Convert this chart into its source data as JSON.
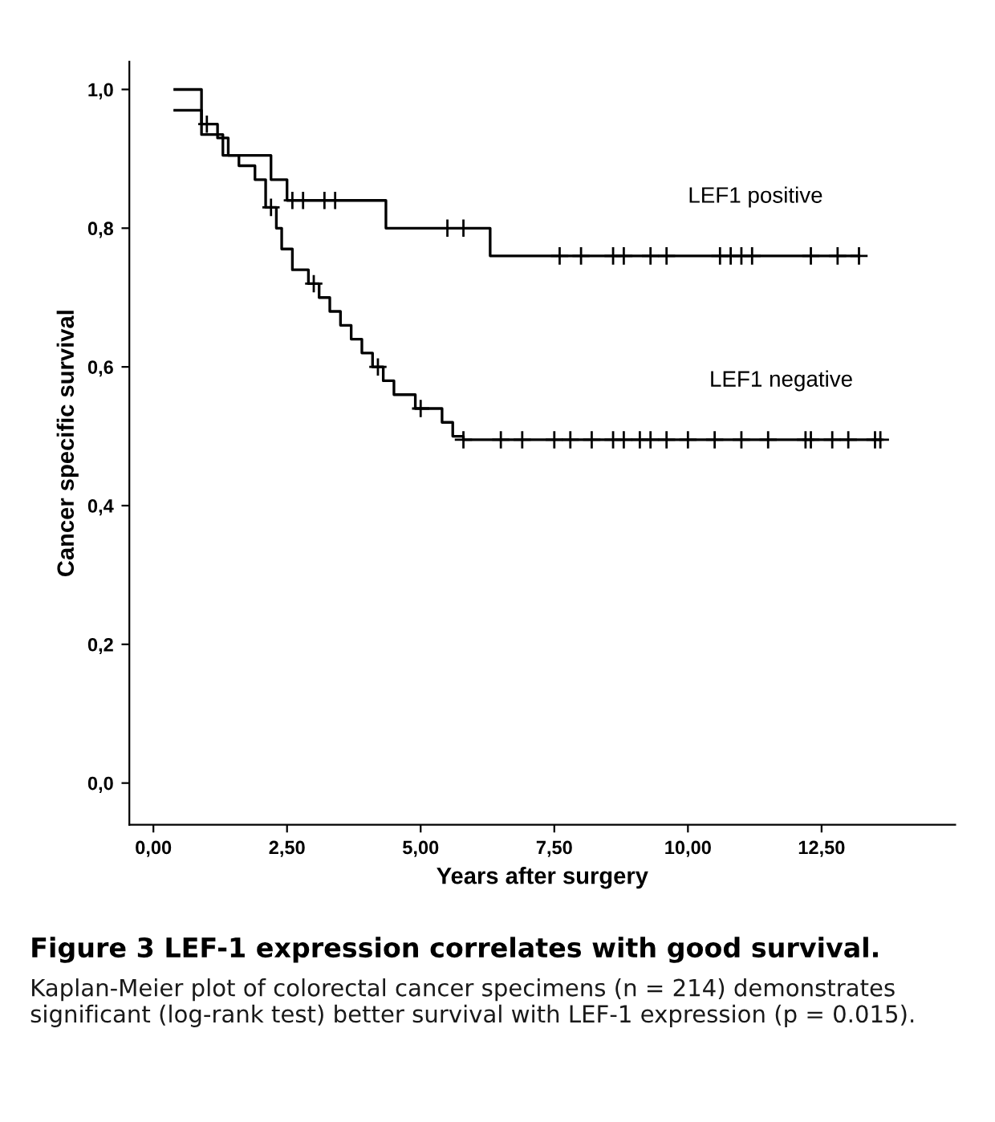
{
  "chart_data": {
    "type": "step",
    "xlabel": "Years after surgery",
    "ylabel": "Cancer specific survival",
    "xlim": [
      -0.45,
      15.0
    ],
    "ylim": [
      -0.06,
      1.04
    ],
    "xticks": [
      {
        "value": 0,
        "label": "0,00"
      },
      {
        "value": 2.5,
        "label": "2,50"
      },
      {
        "value": 5,
        "label": "5,00"
      },
      {
        "value": 7.5,
        "label": "7,50"
      },
      {
        "value": 10,
        "label": "10,00"
      },
      {
        "value": 12.5,
        "label": "12,50"
      }
    ],
    "yticks": [
      {
        "value": 0,
        "label": "0,0"
      },
      {
        "value": 0.2,
        "label": "0,2"
      },
      {
        "value": 0.4,
        "label": "0,4"
      },
      {
        "value": 0.6,
        "label": "0,6"
      },
      {
        "value": 0.8,
        "label": "0,8"
      },
      {
        "value": 1.0,
        "label": "1,0"
      }
    ],
    "grid": false,
    "legend": false,
    "series": [
      {
        "name": "LEF1 positive",
        "color": "#000000",
        "x": [
          0.4,
          0.9,
          1.3,
          2.2,
          2.5,
          4.35,
          6.3,
          13.2
        ],
        "values": [
          1.0,
          0.935,
          0.905,
          0.87,
          0.84,
          0.8,
          0.76,
          0.76
        ]
      },
      {
        "name": "LEF1 negative",
        "color": "#000000",
        "x": [
          0.4,
          0.9,
          1.2,
          1.4,
          1.6,
          1.9,
          2.1,
          2.3,
          2.4,
          2.6,
          2.9,
          3.1,
          3.3,
          3.5,
          3.7,
          3.9,
          4.1,
          4.3,
          4.5,
          4.9,
          5.4,
          5.6,
          5.8,
          13.6
        ],
        "values": [
          0.97,
          0.95,
          0.93,
          0.905,
          0.89,
          0.87,
          0.83,
          0.8,
          0.77,
          0.74,
          0.72,
          0.7,
          0.68,
          0.66,
          0.64,
          0.62,
          0.6,
          0.58,
          0.56,
          0.54,
          0.52,
          0.5,
          0.495,
          0.495
        ]
      },
      {
        "color": "#000000",
        "type": "scatter",
        "marker": "cross",
        "x": [
          2.6,
          2.8,
          3.2,
          3.4,
          5.5,
          5.8,
          7.6,
          8.0,
          8.6,
          8.8,
          9.3,
          9.6,
          10.6,
          10.8,
          11.0,
          11.2,
          12.3,
          12.8,
          13.2
        ],
        "values": [
          0.84,
          0.84,
          0.84,
          0.84,
          0.8,
          0.8,
          0.76,
          0.76,
          0.76,
          0.76,
          0.76,
          0.76,
          0.76,
          0.76,
          0.76,
          0.76,
          0.76,
          0.76,
          0.76
        ]
      },
      {
        "color": "#000000",
        "type": "scatter",
        "marker": "cross",
        "x": [
          1.0,
          2.2,
          3.0,
          4.2,
          5.0,
          5.8,
          6.5,
          6.9,
          7.5,
          7.8,
          8.2,
          8.6,
          8.8,
          9.1,
          9.3,
          9.6,
          10.0,
          10.5,
          11.0,
          11.5,
          12.2,
          12.3,
          12.7,
          13.0,
          13.5,
          13.6
        ],
        "values": [
          0.95,
          0.83,
          0.72,
          0.6,
          0.54,
          0.495,
          0.495,
          0.495,
          0.495,
          0.495,
          0.495,
          0.495,
          0.495,
          0.495,
          0.495,
          0.495,
          0.495,
          0.495,
          0.495,
          0.495,
          0.495,
          0.495,
          0.495,
          0.495,
          0.495,
          0.495
        ]
      }
    ],
    "annotations": [
      "Figure 3 LEF-1 expression correlates with good survival.",
      "Kaplan-Meier plot of colorectal cancer specimens (n = 214) demonstrates significant (log-rank test) better survival with LEF-1 expression (p = 0.015)."
    ]
  }
}
